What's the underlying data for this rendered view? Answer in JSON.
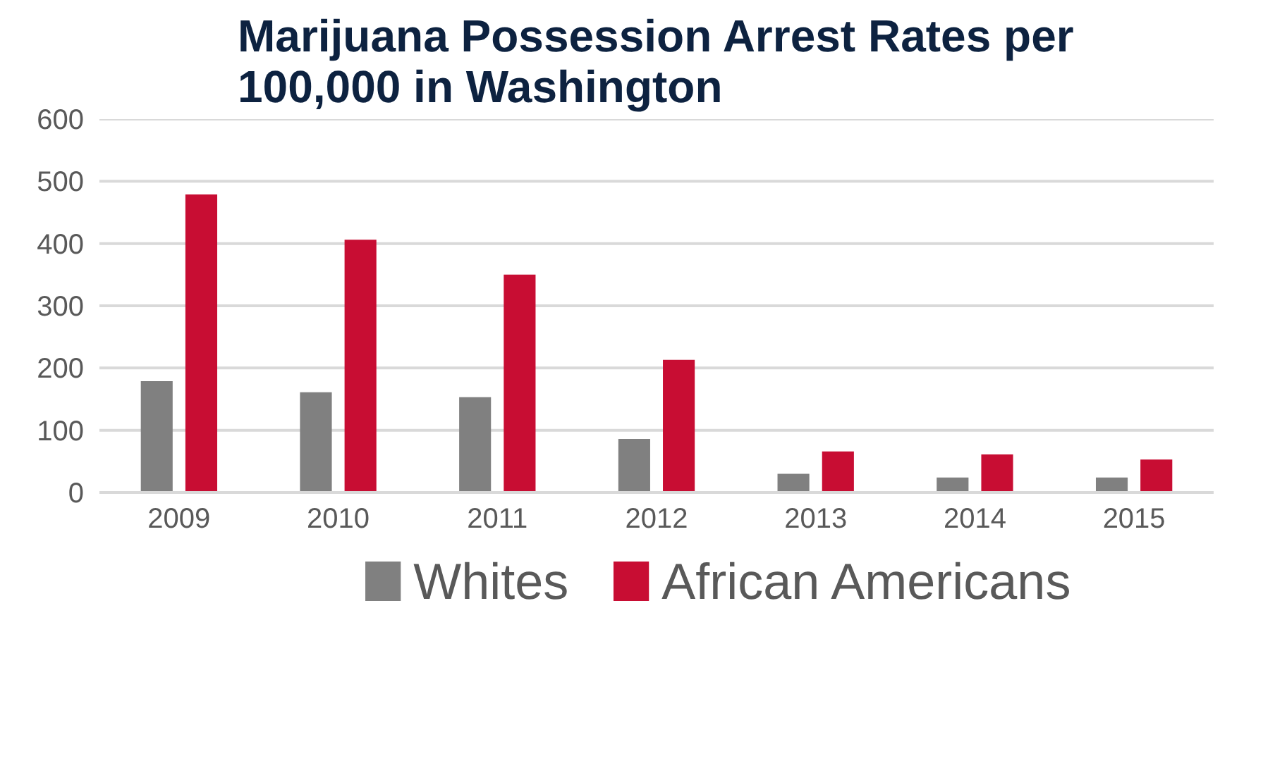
{
  "chart_data": {
    "type": "bar",
    "title": "Marijuana Possession Arrest Rates per\n100,000 in Washington",
    "categories": [
      "2009",
      "2010",
      "2011",
      "2012",
      "2013",
      "2014",
      "2015"
    ],
    "series": [
      {
        "name": "Whites",
        "color": "#808080",
        "values": [
          179,
          161,
          153,
          86,
          30,
          24,
          24
        ]
      },
      {
        "name": "African Americans",
        "color": "#c80d33",
        "values": [
          479,
          406,
          350,
          213,
          66,
          61,
          53
        ]
      }
    ],
    "ylim": [
      0,
      600
    ],
    "yticks": [
      0,
      100,
      200,
      300,
      400,
      500,
      600
    ],
    "grid": "y",
    "legend": "bottom"
  }
}
